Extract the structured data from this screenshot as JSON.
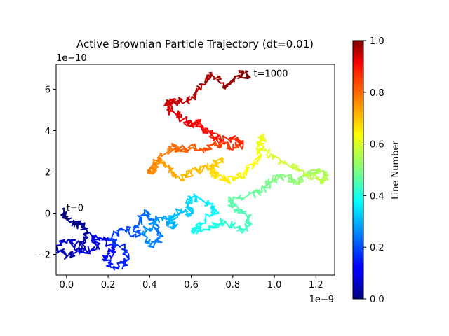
{
  "chart_data": {
    "type": "line",
    "title": "Active Brownian Particle Trajectory (dt=0.01)",
    "xlabel": "",
    "ylabel": "",
    "x_offset_text": "1e−9",
    "y_offset_text": "1e−10",
    "xlim": [
      -0.05,
      1.29
    ],
    "ylim": [
      -3.0,
      7.2
    ],
    "x_ticks": [
      0.0,
      0.2,
      0.4,
      0.6,
      0.8,
      1.0,
      1.2
    ],
    "x_tick_labels": [
      "0.0",
      "0.2",
      "0.4",
      "0.6",
      "0.8",
      "1.0",
      "1.2"
    ],
    "y_ticks": [
      -2,
      0,
      2,
      4,
      6
    ],
    "y_tick_labels": [
      "−2",
      "0",
      "2",
      "4",
      "6"
    ],
    "grid": false,
    "colormap": "jet",
    "colorbar": {
      "label": "Line Number",
      "range": [
        0.0,
        1.0
      ],
      "ticks": [
        0.0,
        0.2,
        0.4,
        0.6,
        0.8,
        1.0
      ],
      "tick_labels": [
        "0.0",
        "0.2",
        "0.4",
        "0.6",
        "0.8",
        "1.0"
      ]
    },
    "annotations": [
      {
        "text": "t=0",
        "x": 0.0,
        "y": 0.1
      },
      {
        "text": "t=1000",
        "x": 0.9,
        "y": 6.6
      }
    ],
    "series": [
      {
        "x": [
          -0.02,
          0.0,
          0.05,
          0.08,
          0.1,
          0.06,
          0.0,
          -0.05,
          0.02,
          0.08,
          0.15,
          0.12,
          0.2,
          0.22,
          0.18,
          0.25,
          0.3,
          0.26,
          0.2,
          0.28,
          0.35,
          0.33,
          0.38,
          0.42,
          0.45,
          0.4,
          0.36,
          0.42,
          0.48,
          0.52,
          0.5,
          0.55,
          0.6,
          0.58,
          0.62,
          0.68,
          0.72,
          0.65,
          0.6,
          0.7,
          0.75,
          0.8,
          0.85,
          0.88,
          0.82,
          0.78,
          0.9,
          0.95,
          1.0,
          1.05,
          1.1,
          1.15,
          1.2,
          1.25,
          1.22,
          1.12,
          1.05,
          0.98,
          0.92,
          0.95,
          0.92,
          0.85,
          0.78,
          0.72,
          0.7,
          0.74,
          0.68,
          0.6,
          0.55,
          0.5,
          0.45,
          0.42,
          0.4,
          0.45,
          0.52,
          0.55,
          0.6,
          0.66,
          0.72,
          0.78,
          0.85,
          0.82,
          0.75,
          0.7,
          0.65,
          0.62,
          0.6,
          0.55,
          0.5,
          0.48,
          0.52,
          0.6,
          0.65,
          0.7,
          0.75,
          0.8,
          0.85,
          0.87
        ],
        "y": [
          0.2,
          -0.3,
          -0.6,
          -0.5,
          -1.2,
          -1.8,
          -2.1,
          -1.6,
          -1.3,
          -1.9,
          -1.6,
          -1.1,
          -1.3,
          -1.9,
          -2.3,
          -2.7,
          -2.2,
          -1.6,
          -1.2,
          -0.8,
          -1.1,
          -0.6,
          0.1,
          -0.4,
          -1.2,
          -1.6,
          -1.0,
          -0.5,
          -0.2,
          -0.7,
          -0.4,
          0.1,
          -0.1,
          0.5,
          0.8,
          0.4,
          0.1,
          -0.5,
          -0.9,
          -0.7,
          -0.4,
          -0.6,
          -0.9,
          -0.3,
          0.2,
          0.6,
          0.9,
          1.2,
          1.6,
          1.8,
          1.5,
          1.8,
          2.0,
          1.8,
          1.5,
          2.1,
          2.4,
          2.8,
          3.1,
          3.8,
          2.5,
          1.9,
          1.6,
          1.8,
          2.0,
          2.6,
          2.2,
          2.0,
          1.6,
          2.1,
          2.6,
          2.2,
          2.0,
          2.7,
          3.3,
          3.0,
          3.3,
          2.9,
          3.4,
          3.2,
          3.3,
          3.7,
          3.5,
          3.8,
          4.2,
          4.5,
          4.2,
          4.6,
          5.0,
          5.3,
          5.4,
          5.5,
          6.2,
          6.8,
          6.1,
          6.4,
          6.8,
          6.6
        ]
      }
    ]
  }
}
